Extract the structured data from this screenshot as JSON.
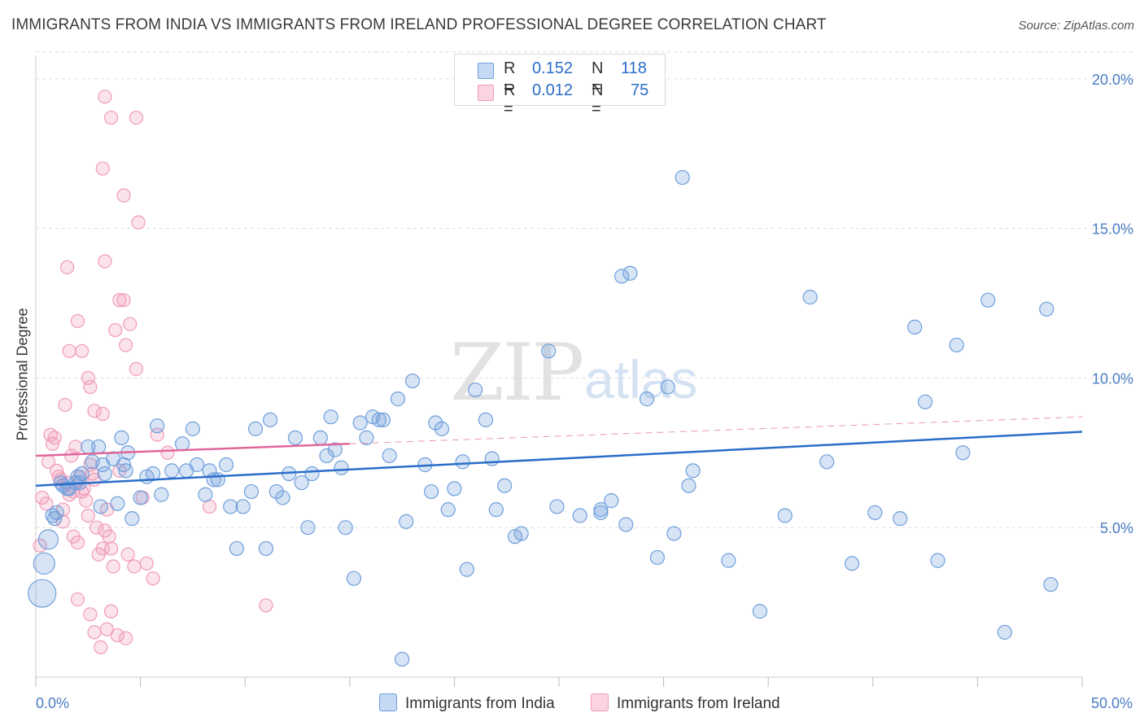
{
  "title": "IMMIGRANTS FROM INDIA VS IMMIGRANTS FROM IRELAND PROFESSIONAL DEGREE CORRELATION CHART",
  "source": "Source: ZipAtlas.com",
  "watermark": {
    "zip": "ZIP",
    "atlas": "atlas"
  },
  "colors": {
    "india": "#6f9fdc",
    "ireland": "#f09ab8",
    "india_line": "#2a6dc9",
    "ireland_line": "#e0679a",
    "tick_text": "#4a7cc4"
  },
  "stats": {
    "india": {
      "r_label": "R =",
      "r": "0.152",
      "n_label": "N =",
      "n": "118"
    },
    "ireland": {
      "r_label": "R =",
      "r": "0.012",
      "n_label": "N =",
      "n": "75"
    }
  },
  "legend": {
    "india": "Immigrants from India",
    "ireland": "Immigrants from Ireland"
  },
  "chart_data": {
    "type": "scatter",
    "title": "IMMIGRANTS FROM INDIA VS IMMIGRANTS FROM IRELAND PROFESSIONAL DEGREE CORRELATION CHART",
    "xlabel": "",
    "ylabel": "Professional Degree",
    "xlim": [
      0,
      50
    ],
    "ylim": [
      0,
      21
    ],
    "x_tick_labels": [
      "0.0%",
      "50.0%"
    ],
    "y_ticks": [
      5,
      10,
      15,
      20
    ],
    "y_tick_labels": [
      "5.0%",
      "10.0%",
      "15.0%",
      "20.0%"
    ],
    "grid": true,
    "legend_position": "bottom",
    "series": [
      {
        "name": "Immigrants from India",
        "trend": {
          "x": [
            0,
            50
          ],
          "y": [
            6.4,
            8.2
          ]
        },
        "points": [
          [
            0.3,
            2.8
          ],
          [
            0.4,
            3.8
          ],
          [
            0.6,
            4.6
          ],
          [
            0.8,
            5.4
          ],
          [
            0.9,
            5.3
          ],
          [
            1.0,
            5.5
          ],
          [
            1.2,
            6.5
          ],
          [
            1.3,
            6.4
          ],
          [
            1.5,
            6.3
          ],
          [
            1.6,
            6.3
          ],
          [
            1.9,
            6.5
          ],
          [
            2.0,
            6.7
          ],
          [
            2.1,
            6.5
          ],
          [
            2.2,
            6.8
          ],
          [
            2.5,
            7.7
          ],
          [
            2.7,
            7.2
          ],
          [
            3.0,
            7.7
          ],
          [
            3.1,
            5.7
          ],
          [
            3.2,
            7.1
          ],
          [
            3.3,
            6.8
          ],
          [
            3.7,
            7.3
          ],
          [
            3.9,
            5.8
          ],
          [
            4.1,
            8.0
          ],
          [
            4.2,
            7.1
          ],
          [
            4.3,
            6.9
          ],
          [
            4.4,
            7.5
          ],
          [
            4.6,
            5.3
          ],
          [
            5.0,
            6.0
          ],
          [
            5.3,
            6.7
          ],
          [
            5.6,
            6.8
          ],
          [
            5.8,
            8.4
          ],
          [
            6.0,
            6.1
          ],
          [
            6.5,
            6.9
          ],
          [
            7.0,
            7.8
          ],
          [
            7.2,
            6.9
          ],
          [
            7.5,
            8.3
          ],
          [
            7.7,
            7.1
          ],
          [
            8.1,
            6.1
          ],
          [
            8.3,
            6.9
          ],
          [
            8.5,
            6.6
          ],
          [
            8.7,
            6.6
          ],
          [
            9.1,
            7.1
          ],
          [
            9.3,
            5.7
          ],
          [
            9.6,
            4.3
          ],
          [
            9.9,
            5.7
          ],
          [
            10.3,
            6.2
          ],
          [
            10.5,
            8.3
          ],
          [
            11.0,
            4.3
          ],
          [
            11.2,
            8.6
          ],
          [
            11.5,
            6.2
          ],
          [
            11.8,
            6.0
          ],
          [
            12.1,
            6.8
          ],
          [
            12.4,
            8.0
          ],
          [
            12.7,
            6.5
          ],
          [
            13.0,
            5.0
          ],
          [
            13.2,
            6.8
          ],
          [
            13.6,
            8.0
          ],
          [
            13.9,
            7.4
          ],
          [
            14.1,
            8.7
          ],
          [
            14.3,
            7.6
          ],
          [
            14.6,
            7.0
          ],
          [
            14.8,
            5.0
          ],
          [
            15.2,
            3.3
          ],
          [
            15.5,
            8.5
          ],
          [
            15.8,
            8.0
          ],
          [
            16.1,
            8.7
          ],
          [
            16.4,
            8.6
          ],
          [
            16.6,
            8.6
          ],
          [
            16.9,
            7.4
          ],
          [
            17.3,
            9.3
          ],
          [
            17.5,
            0.6
          ],
          [
            17.7,
            5.2
          ],
          [
            18.0,
            9.9
          ],
          [
            18.6,
            7.1
          ],
          [
            18.9,
            6.2
          ],
          [
            19.1,
            8.5
          ],
          [
            19.4,
            8.3
          ],
          [
            19.7,
            5.6
          ],
          [
            20.0,
            6.3
          ],
          [
            20.4,
            7.2
          ],
          [
            20.6,
            3.6
          ],
          [
            21.0,
            9.6
          ],
          [
            21.5,
            8.6
          ],
          [
            21.8,
            7.3
          ],
          [
            22.0,
            5.6
          ],
          [
            22.4,
            6.4
          ],
          [
            22.9,
            4.7
          ],
          [
            23.2,
            4.8
          ],
          [
            24.5,
            10.9
          ],
          [
            24.9,
            5.7
          ],
          [
            26.0,
            5.4
          ],
          [
            27.0,
            5.5
          ],
          [
            27.0,
            5.6
          ],
          [
            27.5,
            5.9
          ],
          [
            28.0,
            13.4
          ],
          [
            28.4,
            13.5
          ],
          [
            28.2,
            5.1
          ],
          [
            29.2,
            9.3
          ],
          [
            29.7,
            4.0
          ],
          [
            30.2,
            9.7
          ],
          [
            30.5,
            4.8
          ],
          [
            30.9,
            16.7
          ],
          [
            31.2,
            6.4
          ],
          [
            31.4,
            6.9
          ],
          [
            33.1,
            3.9
          ],
          [
            34.6,
            2.2
          ],
          [
            35.8,
            5.4
          ],
          [
            37.0,
            12.7
          ],
          [
            37.8,
            7.2
          ],
          [
            39.0,
            3.8
          ],
          [
            40.1,
            5.5
          ],
          [
            41.3,
            5.3
          ],
          [
            42.0,
            11.7
          ],
          [
            42.5,
            9.2
          ],
          [
            43.1,
            3.9
          ],
          [
            44.0,
            11.1
          ],
          [
            44.3,
            7.5
          ],
          [
            45.5,
            12.6
          ],
          [
            46.3,
            1.5
          ],
          [
            48.3,
            12.3
          ],
          [
            48.5,
            3.1
          ]
        ]
      },
      {
        "name": "Immigrants from Ireland",
        "trend": {
          "x": [
            0,
            15
          ],
          "y": [
            7.4,
            7.8
          ],
          "dashed_to": {
            "x": 50,
            "y": 8.7
          }
        },
        "points": [
          [
            0.2,
            4.4
          ],
          [
            0.3,
            6.0
          ],
          [
            0.5,
            5.8
          ],
          [
            0.6,
            7.2
          ],
          [
            0.7,
            8.1
          ],
          [
            0.8,
            7.8
          ],
          [
            0.9,
            8.0
          ],
          [
            1.0,
            6.9
          ],
          [
            1.1,
            6.7
          ],
          [
            1.2,
            6.6
          ],
          [
            1.3,
            5.6
          ],
          [
            1.3,
            5.2
          ],
          [
            1.4,
            9.1
          ],
          [
            1.5,
            6.5
          ],
          [
            1.6,
            6.1
          ],
          [
            1.7,
            7.4
          ],
          [
            1.8,
            6.2
          ],
          [
            1.8,
            4.7
          ],
          [
            1.9,
            7.7
          ],
          [
            2.0,
            4.5
          ],
          [
            2.1,
            6.7
          ],
          [
            2.2,
            6.2
          ],
          [
            2.3,
            6.3
          ],
          [
            2.4,
            5.9
          ],
          [
            2.5,
            5.4
          ],
          [
            2.6,
            7.1
          ],
          [
            2.7,
            6.8
          ],
          [
            2.8,
            6.6
          ],
          [
            2.9,
            5.0
          ],
          [
            3.0,
            4.1
          ],
          [
            3.2,
            4.3
          ],
          [
            3.3,
            4.9
          ],
          [
            3.4,
            5.6
          ],
          [
            3.5,
            4.7
          ],
          [
            3.6,
            4.3
          ],
          [
            3.7,
            3.7
          ],
          [
            1.5,
            13.7
          ],
          [
            2.0,
            11.9
          ],
          [
            2.5,
            10.0
          ],
          [
            3.2,
            8.8
          ],
          [
            3.8,
            11.6
          ],
          [
            4.0,
            12.6
          ],
          [
            4.2,
            12.6
          ],
          [
            4.5,
            11.8
          ],
          [
            4.8,
            10.3
          ],
          [
            3.3,
            19.4
          ],
          [
            3.6,
            18.7
          ],
          [
            4.8,
            18.7
          ],
          [
            3.2,
            17.0
          ],
          [
            4.2,
            16.1
          ],
          [
            4.9,
            15.2
          ],
          [
            3.3,
            13.9
          ],
          [
            1.6,
            10.9
          ],
          [
            2.2,
            10.9
          ],
          [
            2.6,
            9.7
          ],
          [
            2.8,
            8.9
          ],
          [
            4.3,
            11.1
          ],
          [
            2.0,
            2.6
          ],
          [
            2.6,
            2.1
          ],
          [
            2.8,
            1.5
          ],
          [
            3.1,
            1.0
          ],
          [
            3.4,
            1.6
          ],
          [
            3.6,
            2.2
          ],
          [
            3.9,
            1.4
          ],
          [
            4.3,
            1.3
          ],
          [
            4.7,
            3.7
          ],
          [
            4.4,
            4.1
          ],
          [
            5.1,
            6.0
          ],
          [
            5.3,
            3.8
          ],
          [
            5.6,
            3.3
          ],
          [
            8.3,
            5.7
          ],
          [
            11.0,
            2.4
          ],
          [
            4.0,
            6.9
          ],
          [
            5.8,
            8.1
          ],
          [
            6.3,
            7.5
          ]
        ]
      }
    ]
  }
}
